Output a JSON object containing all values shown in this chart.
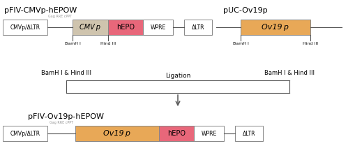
{
  "bg_color": "#ffffff",
  "title1": "pFIV-CMVp-hEPOW",
  "title2": "pUC-Ov19p",
  "title3": "pFIV-Ov19p-hEPOW",
  "colors": {
    "white_box": "#ffffff",
    "cmvp_box": "#cfc4ae",
    "hepo_box": "#e8677a",
    "ov19p_box": "#e8a857",
    "line_color": "#555555",
    "border_color": "#888888",
    "gray_text": "#999999"
  }
}
